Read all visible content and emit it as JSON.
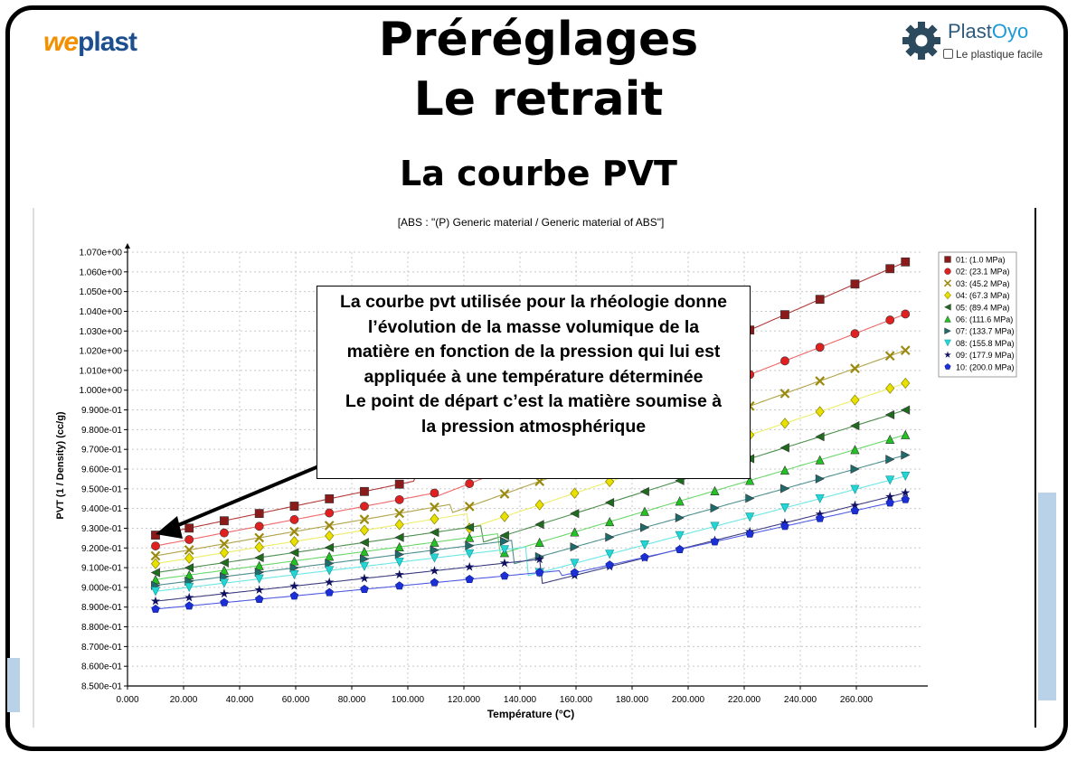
{
  "header": {
    "title_line1": "Préréglages",
    "title_line2": "Le retrait",
    "subtitle": "La courbe PVT"
  },
  "logos": {
    "left": {
      "we": "we",
      "plast": "plast"
    },
    "right": {
      "name_a": "Plast",
      "name_b": "Oyo",
      "tagline": "Le plastique facile"
    }
  },
  "callout": {
    "lines": [
      "La courbe pvt utilisée pour la rhéologie donne",
      "l’évolution de la masse volumique de la",
      "matière en fonction de la pression qui lui est",
      "appliquée à une température déterminée",
      "Le point de départ c’est la matière soumise à",
      "la pression atmosphérique"
    ]
  },
  "colors": {
    "frame": "#000000",
    "logo_orange": "#f29100",
    "logo_blue": "#1d4f8f",
    "grid": "#c8c8c8"
  },
  "chart_data": {
    "type": "scatter",
    "title": "[ABS : \"(P)  Generic material / Generic material of ABS\"]",
    "xlabel": "Température (°C)",
    "ylabel": "PVT (1 / Density) (cc/g)",
    "xlim": [
      0,
      280
    ],
    "ylim": [
      0.85,
      1.07
    ],
    "x_ticks": [
      "0.000",
      "20.000",
      "40.000",
      "60.000",
      "80.000",
      "100.000",
      "120.000",
      "140.000",
      "160.000",
      "180.000",
      "200.000",
      "220.000",
      "240.000",
      "260.000"
    ],
    "y_ticks": [
      "8.500e-01",
      "8.600e-01",
      "8.700e-01",
      "8.800e-01",
      "8.900e-01",
      "9.000e-01",
      "9.100e-01",
      "9.200e-01",
      "9.300e-01",
      "9.400e-01",
      "9.500e-01",
      "9.600e-01",
      "9.700e-01",
      "9.800e-01",
      "9.900e-01",
      "1.000e+00",
      "1.010e+00",
      "1.020e+00",
      "1.030e+00",
      "1.040e+00",
      "1.050e+00",
      "1.060e+00",
      "1.070e+00"
    ],
    "grid": true,
    "legend_position": "top-right",
    "series": [
      {
        "name": "01: (1.0 MPa)",
        "color": "#8b1a1a",
        "marker": "square",
        "T_transition": 103,
        "v_start": 0.9265,
        "slope1": 0.000297,
        "v_after": 0.9565,
        "slope2": 0.000622
      },
      {
        "name": "02: (23.1 MPa)",
        "color": "#e02020",
        "marker": "circle",
        "T_transition": 110,
        "v_start": 0.921,
        "slope1": 0.00027,
        "v_after": 0.946,
        "slope2": 0.000553
      },
      {
        "name": "03: (45.2 MPa)",
        "color": "#9a8a10",
        "marker": "x",
        "T_transition": 116,
        "v_start": 0.916,
        "slope1": 0.000248,
        "v_after": 0.938,
        "slope2": 0.000509
      },
      {
        "name": "04: (67.3 MPa)",
        "color": "#e8e000",
        "marker": "diamond",
        "T_transition": 122,
        "v_start": 0.912,
        "slope1": 0.000228,
        "v_after": 0.93,
        "slope2": 0.000473
      },
      {
        "name": "05: (89.4 MPa)",
        "color": "#1f6b1f",
        "marker": "triangle-left",
        "T_transition": 127,
        "v_start": 0.9075,
        "slope1": 0.000205,
        "v_after": 0.923,
        "slope2": 0.000445
      },
      {
        "name": "06: (111.6 MPa)",
        "color": "#22c222",
        "marker": "triangle-up",
        "T_transition": 133,
        "v_start": 0.904,
        "slope1": 0.00019,
        "v_after": 0.917,
        "slope2": 0.000418
      },
      {
        "name": "07: (133.7 MPa)",
        "color": "#1f6b6b",
        "marker": "triangle-right",
        "T_transition": 138,
        "v_start": 0.901,
        "slope1": 0.00018,
        "v_after": 0.912,
        "slope2": 0.000395
      },
      {
        "name": "08: (155.8 MPa)",
        "color": "#22d6d6",
        "marker": "triangle-down",
        "T_transition": 143,
        "v_start": 0.898,
        "slope1": 0.00017,
        "v_after": 0.906,
        "slope2": 0.000375
      },
      {
        "name": "09: (177.9 MPa)",
        "color": "#101060",
        "marker": "star",
        "T_transition": 148,
        "v_start": 0.893,
        "slope1": 0.000155,
        "v_after": 0.902,
        "slope2": 0.000355
      },
      {
        "name": "10: (200.0 MPa)",
        "color": "#1c2ed6",
        "marker": "pentagon",
        "T_transition": 155,
        "v_start": 0.889,
        "slope1": 0.000135,
        "v_after": 0.906,
        "slope2": 0.000315
      }
    ],
    "x_points": [
      10,
      22,
      34.5,
      47,
      59.5,
      72,
      84.5,
      97,
      109.5,
      122,
      134.5,
      147,
      159.5,
      172,
      184.5,
      197,
      209.5,
      222,
      234.5,
      247,
      259.5,
      272,
      277.5
    ]
  }
}
